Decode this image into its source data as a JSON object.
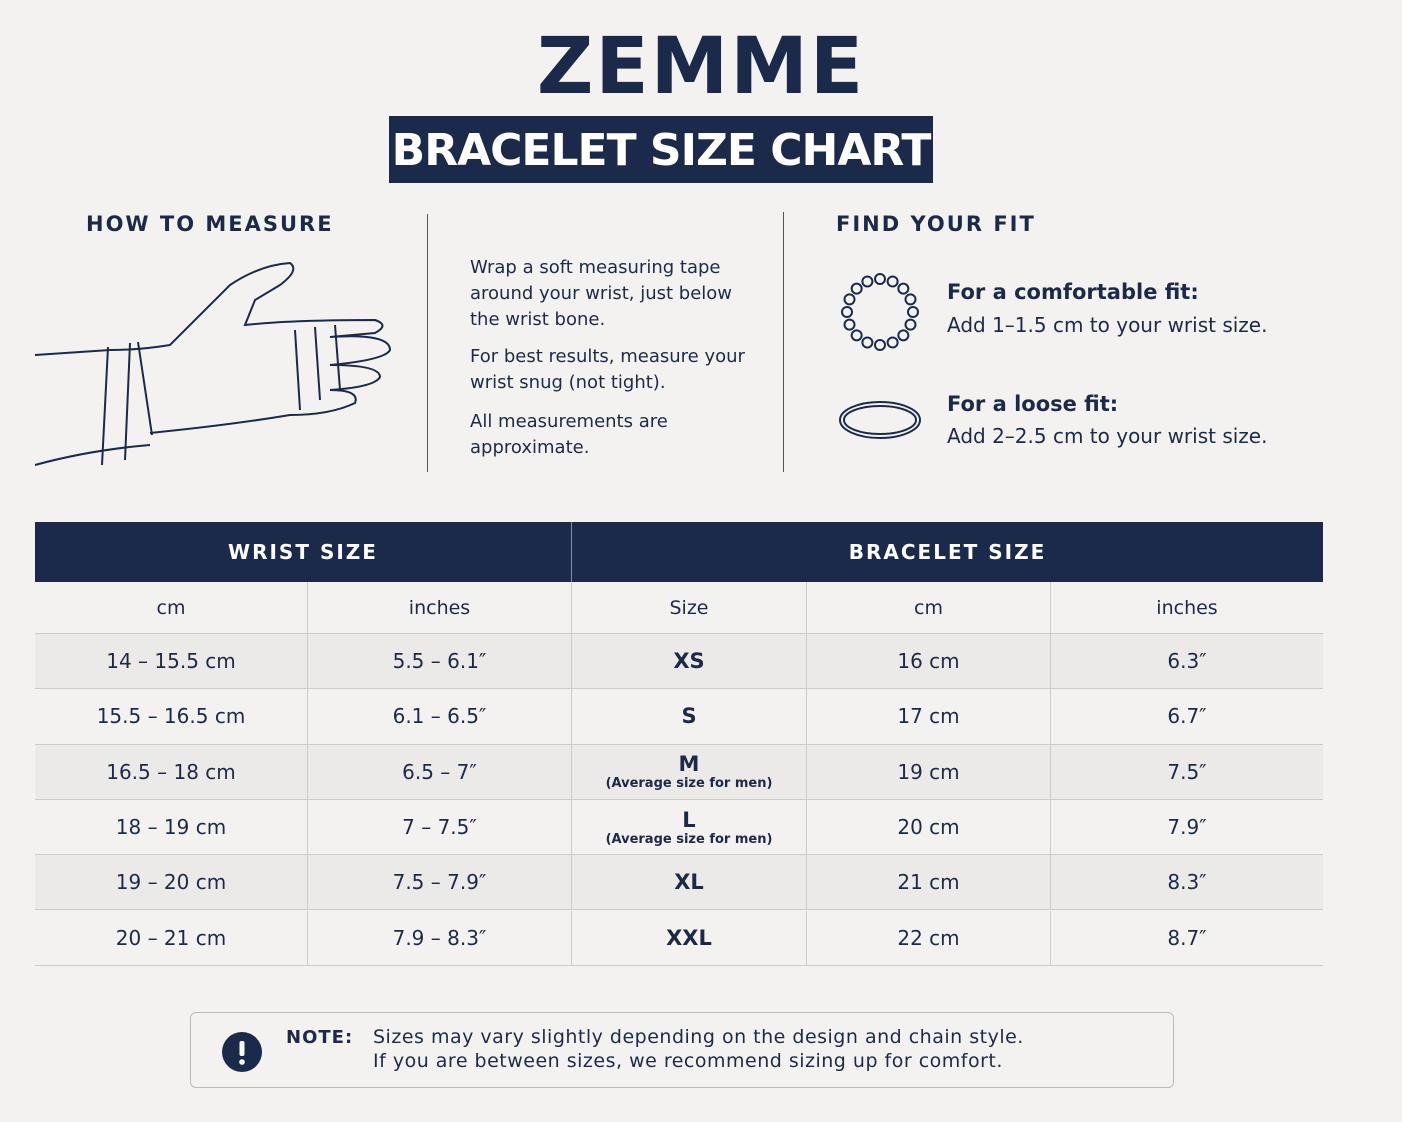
{
  "brand": "ZEMME",
  "title": "BRACELET SIZE CHART",
  "how_to_measure": {
    "heading": "HOW TO MEASURE",
    "instructions": [
      "Wrap a soft measuring tape around your wrist, just below the wrist bone.",
      "For best results, measure your wrist snug (not tight).",
      "All measurements are approximate."
    ]
  },
  "find_your_fit": {
    "heading": "FIND YOUR FIT",
    "items": [
      {
        "label": "For a comfortable fit:",
        "text": "Add 1–1.5 cm to your wrist size."
      },
      {
        "label": "For a loose fit:",
        "text": "Add 2–2.5 cm to your wrist size."
      }
    ]
  },
  "table": {
    "group_headers": [
      "WRIST SIZE",
      "BRACELET SIZE"
    ],
    "columns": [
      "cm",
      "inches",
      "Size",
      "cm",
      "inches"
    ],
    "rows": [
      {
        "wrist_cm": "14 – 15.5 cm",
        "wrist_in": "5.5 – 6.1″",
        "size": "XS",
        "bracelet_cm": "16 cm",
        "bracelet_in": "6.3″"
      },
      {
        "wrist_cm": "15.5 – 16.5 cm",
        "wrist_in": "6.1 – 6.5″",
        "size": "S",
        "bracelet_cm": "17 cm",
        "bracelet_in": "6.7″"
      },
      {
        "wrist_cm": "16.5 – 18 cm",
        "wrist_in": "6.5 – 7″",
        "size": "M",
        "note": "(Average size for men)",
        "bracelet_cm": "19 cm",
        "bracelet_in": "7.5″"
      },
      {
        "wrist_cm": "18 – 19 cm",
        "wrist_in": "7 – 7.5″",
        "size": "L",
        "note": "(Average size for men)",
        "bracelet_cm": "20 cm",
        "bracelet_in": "7.9″"
      },
      {
        "wrist_cm": "19 – 20 cm",
        "wrist_in": "7.5 – 7.9″",
        "size": "XL",
        "bracelet_cm": "21 cm",
        "bracelet_in": "8.3″"
      },
      {
        "wrist_cm": "20 – 21 cm",
        "wrist_in": "7.9 – 8.3″",
        "size": "XXL",
        "bracelet_cm": "22 cm",
        "bracelet_in": "8.7″"
      }
    ]
  },
  "note": {
    "label": "NOTE:",
    "lines": [
      "Sizes may vary slightly depending on the design and chain style.",
      "If you are between sizes, we recommend sizing up for comfort."
    ]
  }
}
